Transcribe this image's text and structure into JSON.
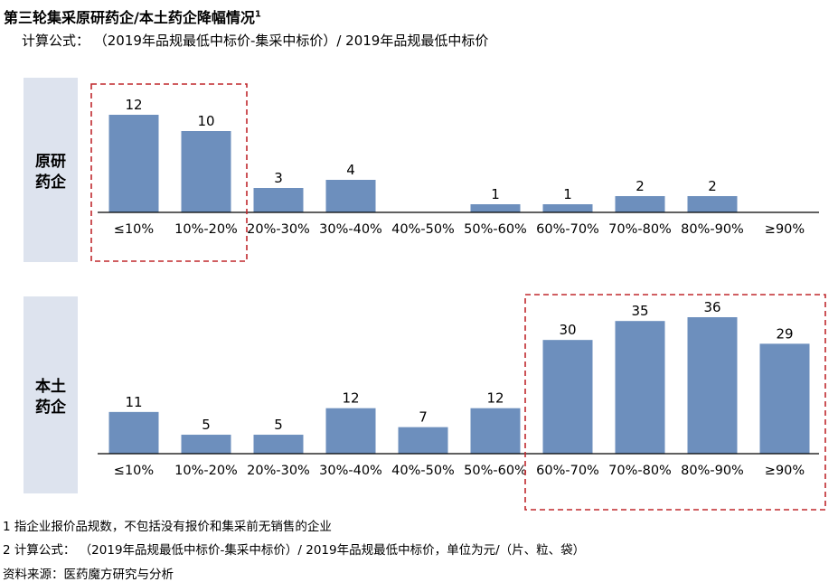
{
  "title": "第三轮集采原研药企/本土药企降幅情况",
  "title_sup": "1",
  "formula": "计算公式：  （2019年品规最低中标价-集采中标价）/ 2019年品规最低中标价",
  "notes": [
    "1 指企业报价品规数，不包括没有报价和集采前无销售的企业",
    "2 计算公式：  （2019年品规最低中标价-集采中标价）/ 2019年品规最低中标价，单位为元/（片、粒、袋）",
    "资料来源：医药魔方研究与分析"
  ],
  "colors": {
    "bar": "#6d8fbd",
    "label_bg": "#dde3ee",
    "highlight": "#c0282d",
    "axis": "#000000"
  },
  "chart_data": [
    {
      "type": "bar",
      "group_label": [
        "原研",
        "药企"
      ],
      "categories": [
        "≤10%",
        "10%-20%",
        "20%-30%",
        "30%-40%",
        "40%-50%",
        "50%-60%",
        "60%-70%",
        "70%-80%",
        "80%-90%",
        "≥90%"
      ],
      "values": [
        12,
        10,
        3,
        4,
        0,
        1,
        1,
        2,
        2,
        0
      ],
      "show_label": [
        true,
        true,
        true,
        true,
        false,
        true,
        true,
        true,
        true,
        false
      ],
      "highlight_categories": [
        "≤10%",
        "10%-20%"
      ],
      "ylim": [
        0,
        12
      ]
    },
    {
      "type": "bar",
      "group_label": [
        "本土",
        "药企"
      ],
      "categories": [
        "≤10%",
        "10%-20%",
        "20%-30%",
        "30%-40%",
        "40%-50%",
        "50%-60%",
        "60%-70%",
        "70%-80%",
        "80%-90%",
        "≥90%"
      ],
      "values": [
        11,
        5,
        5,
        12,
        7,
        12,
        30,
        35,
        36,
        29
      ],
      "show_label": [
        true,
        true,
        true,
        true,
        true,
        true,
        true,
        true,
        true,
        true
      ],
      "highlight_categories": [
        "60%-70%",
        "70%-80%",
        "80%-90%",
        "≥90%"
      ],
      "ylim": [
        0,
        36
      ]
    }
  ]
}
